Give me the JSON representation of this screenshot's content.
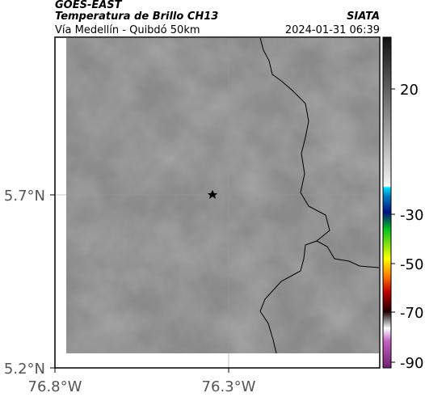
{
  "header": {
    "product": "GOES-EAST",
    "title": "Temperatura de Brillo CH13",
    "subtitle": "Vía Medellín - Quibdó 50km",
    "org": "SIATA",
    "datetime": "2024-01-31 06:39"
  },
  "map": {
    "lat_labels": [
      "5.7°N",
      "5.2°N"
    ],
    "lon_labels": [
      "76.8°W",
      "76.3°W"
    ]
  },
  "colorbar": {
    "ticks": [
      "20",
      "-30",
      "-50",
      "-70",
      "-90"
    ]
  }
}
